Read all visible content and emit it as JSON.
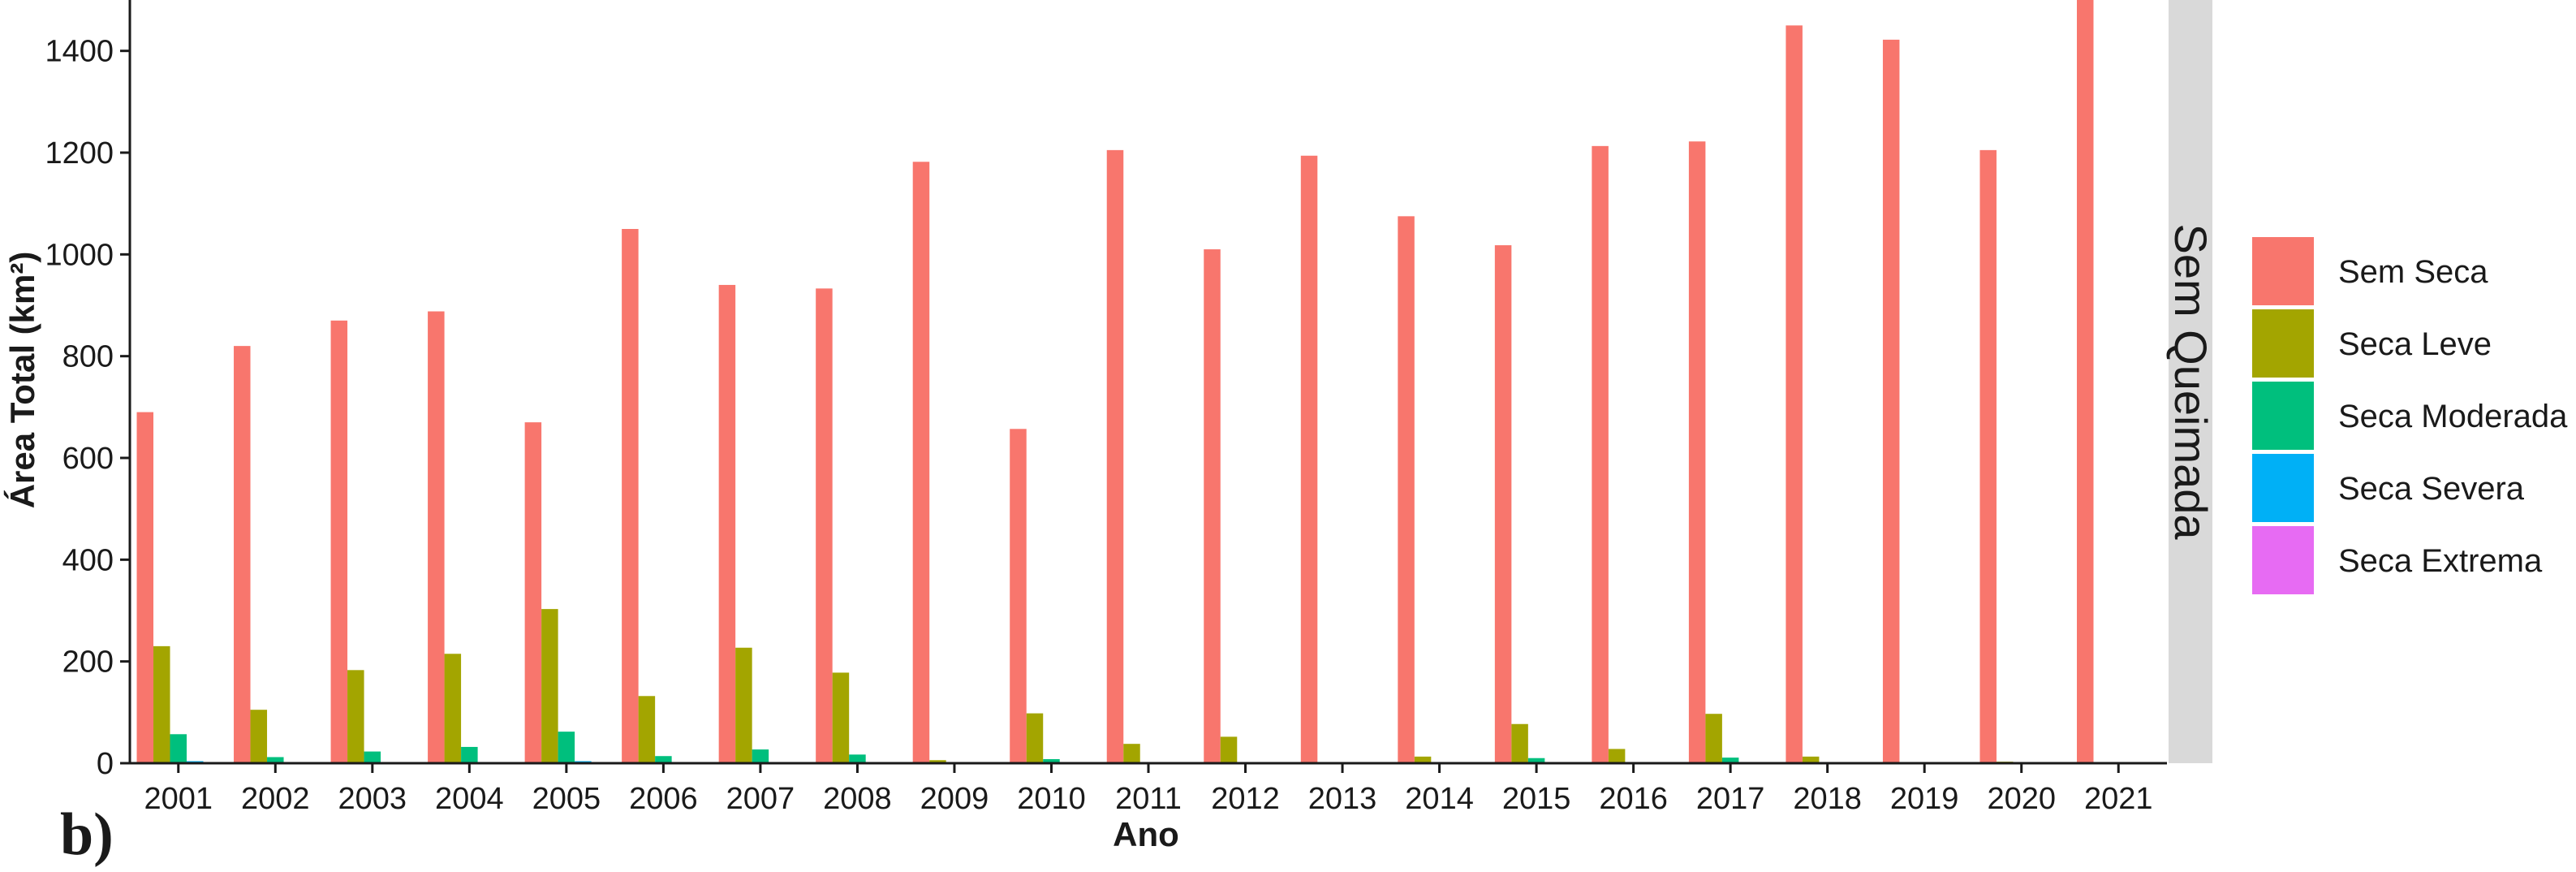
{
  "colors": {
    "sem_seca": "#F8766D",
    "seca_leve": "#A3A500",
    "seca_moderada": "#00BF7D",
    "seca_severa": "#00B0F6",
    "seca_extrema": "#E76BF3",
    "strip": "#D9D9D9"
  },
  "panel_tag": "b)",
  "chart_data": {
    "type": "bar",
    "title": "",
    "xlabel": "Ano",
    "ylabel": "Área Total (km²)",
    "ylim": [
      0,
      1500
    ],
    "yticks": [
      0,
      200,
      400,
      600,
      800,
      1000,
      1200,
      1400
    ],
    "grid": false,
    "legend_position": "right",
    "facet_label": "Sem Queimada",
    "categories": [
      "2001",
      "2002",
      "2003",
      "2004",
      "2005",
      "2006",
      "2007",
      "2008",
      "2009",
      "2010",
      "2011",
      "2012",
      "2013",
      "2014",
      "2015",
      "2016",
      "2017",
      "2018",
      "2019",
      "2020",
      "2021"
    ],
    "series": [
      {
        "name": "Sem Seca",
        "color": "#F8766D",
        "values": [
          690,
          820,
          870,
          888,
          670,
          1050,
          940,
          933,
          1182,
          657,
          1205,
          1010,
          1194,
          1075,
          1018,
          1213,
          1222,
          1450,
          1422,
          1205,
          1500
        ]
      },
      {
        "name": "Seca Leve",
        "color": "#A3A500",
        "values": [
          230,
          105,
          183,
          215,
          303,
          132,
          227,
          178,
          6,
          98,
          38,
          52,
          0,
          13,
          77,
          28,
          97,
          13,
          0,
          3,
          2
        ]
      },
      {
        "name": "Seca Moderada",
        "color": "#00BF7D",
        "values": [
          57,
          12,
          23,
          32,
          62,
          14,
          27,
          17,
          0,
          8,
          0,
          0,
          0,
          0,
          10,
          2,
          11,
          0,
          0,
          0,
          0
        ]
      },
      {
        "name": "Seca Severa",
        "color": "#00B0F6",
        "values": [
          4,
          1,
          2,
          2,
          4,
          1,
          2,
          1,
          0,
          1,
          0,
          0,
          0,
          0,
          1,
          0,
          1,
          0,
          0,
          0,
          0
        ]
      },
      {
        "name": "Seca Extrema",
        "color": "#E76BF3",
        "values": [
          0,
          0,
          0,
          0,
          0,
          0,
          0,
          0,
          0,
          0,
          0,
          0,
          0,
          0,
          0,
          0,
          0,
          0,
          0,
          0,
          0
        ]
      }
    ]
  }
}
